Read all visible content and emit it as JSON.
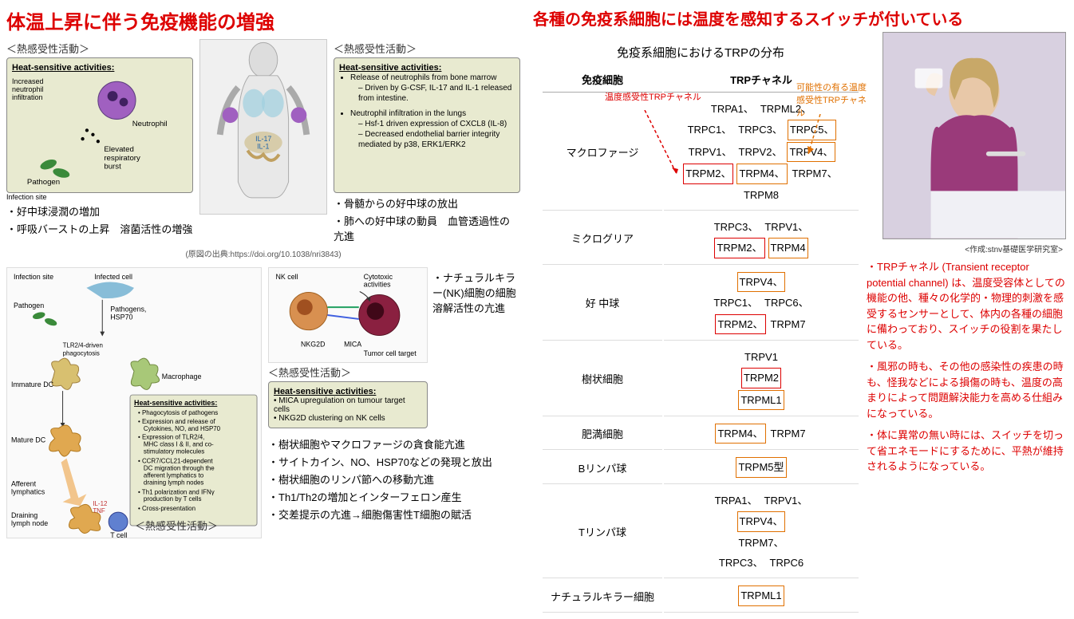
{
  "left": {
    "title": "体温上昇に伴う免疫機能の増強",
    "sub_left": "＜熱感受性活動＞",
    "sub_right": "＜熱感受性活動＞",
    "box1_title": "Heat-sensitive activities:",
    "box1_l1": "Increased neutrophil infiltration",
    "box1_l2": "Neutrophil",
    "box1_l3": "Elevated respiratory burst",
    "box1_pathogen": "Pathogen",
    "box1_site": "Infection site",
    "jp1_l1": "好中球浸潤の増加",
    "jp1_l2": "呼吸バーストの上昇　溶菌活性の増強",
    "citation": "(原図の出典:https://doi.org/10.1038/nri3843)",
    "body_il17": "IL-17",
    "body_il1": "IL-1",
    "box2_title": "Heat-sensitive activities:",
    "box2_l1": "Release of neutrophils from bone marrow",
    "box2_l1a": "Driven by G-CSF, IL-17 and IL-1 released from intestine.",
    "box2_l2": "Neutrophil infiltration in the lungs",
    "box2_l2a": "Hsf-1 driven expression of CXCL8 (IL-8)",
    "box2_l2b": "Decreased endothelial barrier integrity mediated by p38, ERK1/ERK2",
    "jp2_l1": "骨髄からの好中球の放出",
    "jp2_l2": "肺への好中球の動員　血管透過性の亢進",
    "diagram_labels": {
      "inf_site": "Infection site",
      "inf_cell": "Infected cell",
      "pathogen": "Pathogen",
      "path_hsp": "Pathogens, HSP70",
      "tlr": "TLR2/4-driven phagocytosis",
      "imm_dc": "Immature DC",
      "macro": "Macrophage",
      "mat_dc": "Mature DC",
      "aff": "Afferent lymphatics",
      "drain": "Draining lymph node",
      "il12": "IL-12 TNF",
      "tcell": "T cell",
      "hsa_title": "Heat-sensitive activities:",
      "hsa_1": "Phagocytosis of pathogens",
      "hsa_2": "Expression and release of Cytokines, NO, and HSP70",
      "hsa_3": "Expression of TLR2/4, MHC class I & II, and co-stimulatory molecules",
      "hsa_4": "CCR7/CCL21-dependent DC migration through the afferent lymphatics to draining lymph nodes",
      "hsa_5": "Th1 polarization and IFNγ production by T cells",
      "hsa_6": "Cross-presentation"
    },
    "sub_bottom": "＜熱感受性活動＞",
    "nk": {
      "nk_cell": "NK cell",
      "cyto": "Cytotoxic activities",
      "nkg2d": "NKG2D",
      "mica": "MICA",
      "target": "Tumor cell target",
      "title": "Heat-sensitive activities:",
      "l1": "MICA upregulation on tumour target cells",
      "l2": "NKG2D clustering on NK cells"
    },
    "nk_sub": "＜熱感受性活動＞",
    "jp3_l1": "ナチュラルキラー(NK)細胞の細胞溶解活性の亢進",
    "jp4_l1": "樹状細胞やマクロファージの貪食能亢進",
    "jp4_l2": "サイトカイン、NO、HSP70などの発現と放出",
    "jp4_l3": "樹状細胞のリンパ節への移動亢進",
    "jp4_l4": "Th1/Th2の増加とインターフェロン産生",
    "jp4_l5": "交差提示の亢進→細胞傷害性T細胞の賦活"
  },
  "right": {
    "title": "各種の免疫系細胞には温度を感知するスイッチが付いている",
    "table_title": "免疫系細胞におけるTRPの分布",
    "th1": "免疫細胞",
    "th2": "TRPチャネル",
    "legend_red": "温度感受性TRPチャネル",
    "legend_orange": "可能性の有る温度感受性TRPチャネル",
    "rows": [
      {
        "cell": "マクロファージ",
        "chans": [
          {
            "t": "TRPA1、",
            "c": ""
          },
          {
            "t": "TRPML2、",
            "c": ""
          },
          {
            "t": "TRPC1、",
            "c": ""
          },
          {
            "t": "TRPC3、",
            "c": ""
          },
          {
            "t": "TRPC5、",
            "c": "orange-box"
          },
          {
            "t": "TRPV1、",
            "c": ""
          },
          {
            "t": "TRPV2、",
            "c": ""
          },
          {
            "t": "TRPV4、",
            "c": "orange-box"
          },
          {
            "t": "TRPM2、",
            "c": "red-box"
          },
          {
            "t": "TRPM4、",
            "c": "orange-box"
          },
          {
            "t": "TRPM7、",
            "c": ""
          },
          {
            "t": "TRPM8",
            "c": ""
          }
        ]
      },
      {
        "cell": "ミクログリア",
        "chans": [
          {
            "t": "TRPC3、",
            "c": ""
          },
          {
            "t": "TRPV1、",
            "c": ""
          },
          {
            "t": "TRPM2、",
            "c": "red-box"
          },
          {
            "t": "TRPM4",
            "c": "orange-box"
          }
        ]
      },
      {
        "cell": "好 中球",
        "chans": [
          {
            "t": "TRPV4、",
            "c": "orange-box"
          },
          {
            "t": "TRPC1、",
            "c": ""
          },
          {
            "t": "TRPC6、",
            "c": ""
          },
          {
            "t": "TRPM2、",
            "c": "red-box"
          },
          {
            "t": "TRPM7",
            "c": ""
          }
        ]
      },
      {
        "cell": "樹状細胞",
        "chans": [
          {
            "t": "TRPV1",
            "c": ""
          },
          {
            "t": "TRPM2",
            "c": "red-box"
          },
          {
            "t": "TRPML1",
            "c": "orange-box"
          }
        ]
      },
      {
        "cell": "肥満細胞",
        "chans": [
          {
            "t": "TRPM4、",
            "c": "orange-box"
          },
          {
            "t": "TRPM7",
            "c": ""
          }
        ]
      },
      {
        "cell": "Bリンパ球",
        "chans": [
          {
            "t": "TRPM5型",
            "c": "orange-box"
          }
        ]
      },
      {
        "cell": "Tリンパ球",
        "chans": [
          {
            "t": "TRPA1、",
            "c": ""
          },
          {
            "t": "TRPV1、",
            "c": ""
          },
          {
            "t": "TRPV4、",
            "c": "orange-box"
          },
          {
            "t": "TRPM7、",
            "c": ""
          },
          {
            "t": "TRPC3、",
            "c": ""
          },
          {
            "t": "TRPC6",
            "c": ""
          }
        ]
      },
      {
        "cell": "ナチュラルキラー細胞",
        "chans": [
          {
            "t": "TRPML1",
            "c": "orange-box"
          }
        ]
      }
    ],
    "credit": "<作成:stnv基礎医学研究室>",
    "note1": "TRPチャネル (Transient receptor potential channel) は、温度受容体としての機能の他、種々の化学的・物理的刺激を感受するセンサーとして、体内の各種の細胞に備わっており、スイッチの役割を果たしている。",
    "note2": "風邪の時も、その他の感染性の疾患の時も、怪我などによる損傷の時も、温度の高まりによって問題解決能力を高める仕組みになっている。",
    "note3": "体に異常の無い時には、スイッチを切って省エネモードにするために、平熱が維持されるようになっている。"
  },
  "colors": {
    "red": "#d00000",
    "orange": "#e07000",
    "box_bg": "#e8ead0"
  }
}
